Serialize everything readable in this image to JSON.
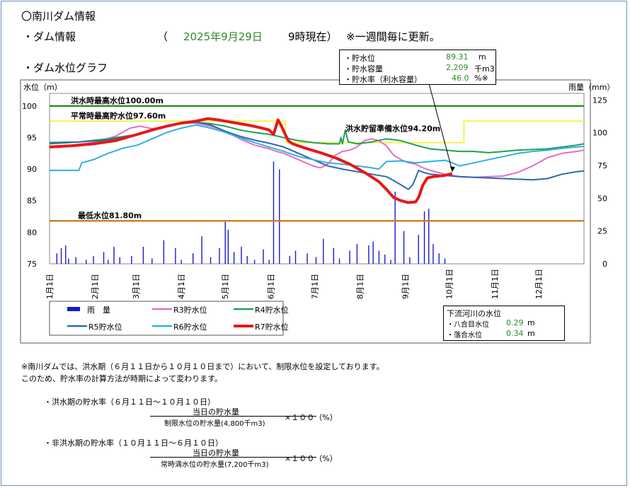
{
  "header": {
    "title": "〇南川ダム情報",
    "info_label": "・ダム情報",
    "paren_open": "（",
    "date": "2025年9月29日",
    "time": "9時現在）",
    "update_note": "※一週間毎に更新。",
    "graph_label": "・ダム水位グラフ"
  },
  "status_box": {
    "rows": [
      {
        "label": "・貯水位",
        "value": "89.31",
        "unit": "m"
      },
      {
        "label": "・貯水容量",
        "value": "2,209",
        "unit": "千m3"
      },
      {
        "label": "・貯水率（利水容量）",
        "value": "46.0",
        "unit": "%※"
      }
    ]
  },
  "river_box": {
    "title": "下流河川の水位",
    "rows": [
      {
        "label": "・八合目水位",
        "value": "0.29",
        "unit": "m"
      },
      {
        "label": "・落合水位",
        "value": "0.34",
        "unit": "m"
      }
    ]
  },
  "chart_data": {
    "type": "line",
    "ylabel": "水位（m）",
    "y2label": "雨量（mm）",
    "ylim": [
      75,
      102
    ],
    "y2lim": [
      0,
      130
    ],
    "y_ticks": [
      75,
      80,
      85,
      90,
      95,
      100
    ],
    "y2_ticks": [
      0,
      25,
      50,
      75,
      100,
      125
    ],
    "x_unit": "day_of_year",
    "xlim": [
      0,
      365
    ],
    "x_tick_labels": [
      "1月1日",
      "2月1日",
      "3月1日",
      "4月1日",
      "5月1日",
      "6月1日",
      "7月1日",
      "8月1日",
      "9月1日",
      "10月1日",
      "11月1日",
      "12月1日"
    ],
    "x_tick_days": [
      0,
      31,
      59,
      90,
      120,
      151,
      181,
      212,
      243,
      273,
      304,
      334
    ],
    "reference_lines": [
      {
        "label": "洪水時最高水位100.00m",
        "value": 100.0,
        "color": "#2a8f2a"
      },
      {
        "label": "平常時最高貯水位97.60m",
        "value": 97.6,
        "color": "#000000"
      },
      {
        "label": "洪水貯留準備水位94.20m",
        "value": 94.2,
        "color": "#000000"
      },
      {
        "label": "最低水位81.80m",
        "value": 81.8,
        "color": "#d07f2a"
      }
    ],
    "limit_series": {
      "name": "制限水位",
      "color": "#f5f050",
      "points": [
        [
          0,
          97.6
        ],
        [
          161,
          97.6
        ],
        [
          161,
          94.2
        ],
        [
          283,
          94.2
        ],
        [
          283,
          97.6
        ],
        [
          365,
          97.6
        ]
      ]
    },
    "series": [
      {
        "name": "R3貯水位",
        "color": "#e070c8",
        "width": 2,
        "points": [
          [
            0,
            93.6
          ],
          [
            15,
            93.8
          ],
          [
            30,
            94.2
          ],
          [
            45,
            95.2
          ],
          [
            55,
            96.5
          ],
          [
            62,
            96.8
          ],
          [
            70,
            96.4
          ],
          [
            80,
            96.8
          ],
          [
            90,
            97.3
          ],
          [
            100,
            97.3
          ],
          [
            110,
            96.8
          ],
          [
            120,
            96.0
          ],
          [
            130,
            94.8
          ],
          [
            140,
            93.8
          ],
          [
            150,
            93.2
          ],
          [
            155,
            92.8
          ],
          [
            160,
            92.5
          ],
          [
            165,
            92.0
          ],
          [
            170,
            91.5
          ],
          [
            175,
            91.0
          ],
          [
            180,
            90.5
          ],
          [
            185,
            90.2
          ],
          [
            190,
            90.8
          ],
          [
            195,
            92.2
          ],
          [
            200,
            92.8
          ],
          [
            205,
            93.0
          ],
          [
            210,
            93.5
          ],
          [
            215,
            94.5
          ],
          [
            220,
            94.8
          ],
          [
            225,
            94.5
          ],
          [
            230,
            93.7
          ],
          [
            235,
            92.2
          ],
          [
            240,
            91.5
          ],
          [
            245,
            91.0
          ],
          [
            250,
            90.8
          ],
          [
            255,
            90.2
          ],
          [
            260,
            89.8
          ],
          [
            265,
            89.5
          ],
          [
            270,
            89.2
          ],
          [
            275,
            89.0
          ],
          [
            280,
            88.8
          ],
          [
            290,
            88.7
          ],
          [
            300,
            88.8
          ],
          [
            310,
            88.9
          ],
          [
            320,
            89.5
          ],
          [
            330,
            90.5
          ],
          [
            340,
            91.8
          ],
          [
            350,
            92.5
          ],
          [
            360,
            92.8
          ],
          [
            365,
            93.0
          ]
        ]
      },
      {
        "name": "R4貯水位",
        "color": "#1fa05a",
        "width": 2,
        "points": [
          [
            0,
            94.0
          ],
          [
            20,
            94.3
          ],
          [
            40,
            94.8
          ],
          [
            60,
            95.5
          ],
          [
            75,
            96.5
          ],
          [
            90,
            97.3
          ],
          [
            100,
            97.4
          ],
          [
            110,
            97.2
          ],
          [
            120,
            96.8
          ],
          [
            130,
            96.2
          ],
          [
            140,
            95.8
          ],
          [
            150,
            95.5
          ],
          [
            160,
            95.0
          ],
          [
            170,
            94.5
          ],
          [
            180,
            94.2
          ],
          [
            190,
            94.0
          ],
          [
            198,
            94.0
          ],
          [
            199,
            95.0
          ],
          [
            200,
            94.0
          ],
          [
            202,
            96.2
          ],
          [
            204,
            94.3
          ],
          [
            210,
            94.0
          ],
          [
            220,
            94.3
          ],
          [
            230,
            94.8
          ],
          [
            240,
            94.5
          ],
          [
            250,
            93.8
          ],
          [
            260,
            93.2
          ],
          [
            270,
            93.0
          ],
          [
            280,
            92.8
          ],
          [
            290,
            92.8
          ],
          [
            300,
            92.6
          ],
          [
            310,
            92.8
          ],
          [
            320,
            93.0
          ],
          [
            330,
            93.1
          ],
          [
            340,
            93.2
          ],
          [
            350,
            93.5
          ],
          [
            360,
            93.8
          ],
          [
            365,
            94.0
          ]
        ]
      },
      {
        "name": "R5貯水位",
        "color": "#2c6aa8",
        "width": 2,
        "points": [
          [
            0,
            94.2
          ],
          [
            20,
            94.3
          ],
          [
            40,
            94.6
          ],
          [
            55,
            95.2
          ],
          [
            70,
            96.2
          ],
          [
            85,
            97.0
          ],
          [
            100,
            97.5
          ],
          [
            110,
            97.0
          ],
          [
            120,
            96.0
          ],
          [
            130,
            95.2
          ],
          [
            140,
            94.6
          ],
          [
            150,
            94.1
          ],
          [
            160,
            93.5
          ],
          [
            165,
            93.0
          ],
          [
            170,
            92.5
          ],
          [
            175,
            92.0
          ],
          [
            180,
            91.5
          ],
          [
            185,
            91.0
          ],
          [
            190,
            90.5
          ],
          [
            200,
            90.0
          ],
          [
            210,
            89.6
          ],
          [
            220,
            89.2
          ],
          [
            230,
            88.8
          ],
          [
            235,
            88.2
          ],
          [
            240,
            87.5
          ],
          [
            245,
            86.8
          ],
          [
            248,
            87.5
          ],
          [
            250,
            88.6
          ],
          [
            252,
            89.8
          ],
          [
            255,
            89.5
          ],
          [
            260,
            89.2
          ],
          [
            270,
            89.0
          ],
          [
            280,
            88.8
          ],
          [
            290,
            88.7
          ],
          [
            300,
            88.6
          ],
          [
            310,
            88.5
          ],
          [
            320,
            88.4
          ],
          [
            330,
            88.3
          ],
          [
            340,
            88.5
          ],
          [
            350,
            89.2
          ],
          [
            360,
            89.6
          ],
          [
            365,
            89.7
          ]
        ]
      },
      {
        "name": "R6貯水位",
        "color": "#30b0e0",
        "width": 2,
        "points": [
          [
            0,
            89.8
          ],
          [
            15,
            89.8
          ],
          [
            20,
            89.8
          ],
          [
            22,
            91.0
          ],
          [
            30,
            91.5
          ],
          [
            40,
            92.5
          ],
          [
            50,
            93.3
          ],
          [
            60,
            93.8
          ],
          [
            70,
            94.8
          ],
          [
            80,
            95.8
          ],
          [
            90,
            96.5
          ],
          [
            100,
            97.0
          ],
          [
            110,
            96.5
          ],
          [
            120,
            95.8
          ],
          [
            130,
            95.0
          ],
          [
            140,
            94.2
          ],
          [
            150,
            93.5
          ],
          [
            160,
            92.8
          ],
          [
            170,
            92.0
          ],
          [
            180,
            91.5
          ],
          [
            190,
            91.0
          ],
          [
            200,
            90.8
          ],
          [
            210,
            90.5
          ],
          [
            220,
            90.2
          ],
          [
            225,
            90.0
          ],
          [
            230,
            91.2
          ],
          [
            240,
            91.3
          ],
          [
            250,
            91.0
          ],
          [
            260,
            91.2
          ],
          [
            270,
            91.4
          ],
          [
            275,
            91.0
          ],
          [
            280,
            90.5
          ],
          [
            290,
            91.0
          ],
          [
            300,
            91.5
          ],
          [
            310,
            92.0
          ],
          [
            320,
            92.5
          ],
          [
            330,
            92.8
          ],
          [
            340,
            93.0
          ],
          [
            350,
            93.3
          ],
          [
            360,
            93.5
          ],
          [
            365,
            93.6
          ]
        ]
      },
      {
        "name": "R7貯水位",
        "color": "#e81818",
        "width": 4,
        "points": [
          [
            0,
            93.5
          ],
          [
            15,
            93.7
          ],
          [
            30,
            94.0
          ],
          [
            45,
            94.5
          ],
          [
            60,
            95.5
          ],
          [
            70,
            96.2
          ],
          [
            80,
            96.8
          ],
          [
            90,
            97.3
          ],
          [
            100,
            97.6
          ],
          [
            108,
            98.0
          ],
          [
            115,
            97.8
          ],
          [
            125,
            97.4
          ],
          [
            135,
            97.0
          ],
          [
            145,
            96.5
          ],
          [
            150,
            96.2
          ],
          [
            153,
            95.5
          ],
          [
            156,
            97.8
          ],
          [
            158,
            97.0
          ],
          [
            160,
            96.0
          ],
          [
            163,
            94.5
          ],
          [
            166,
            94.0
          ],
          [
            175,
            93.3
          ],
          [
            185,
            92.6
          ],
          [
            195,
            91.8
          ],
          [
            205,
            90.8
          ],
          [
            215,
            89.5
          ],
          [
            225,
            88.0
          ],
          [
            230,
            86.8
          ],
          [
            235,
            85.5
          ],
          [
            240,
            85.0
          ],
          [
            245,
            84.7
          ],
          [
            250,
            84.8
          ],
          [
            252,
            85.5
          ],
          [
            255,
            87.5
          ],
          [
            258,
            88.6
          ],
          [
            262,
            88.8
          ],
          [
            270,
            89.0
          ],
          [
            275,
            89.31
          ]
        ]
      }
    ],
    "rain_series": {
      "name": "雨量",
      "color": "#1818d0",
      "points": [
        [
          5,
          8
        ],
        [
          8,
          12
        ],
        [
          11,
          14
        ],
        [
          13,
          4
        ],
        [
          18,
          5
        ],
        [
          25,
          3
        ],
        [
          30,
          6
        ],
        [
          37,
          9
        ],
        [
          40,
          3
        ],
        [
          44,
          13
        ],
        [
          48,
          5
        ],
        [
          56,
          6
        ],
        [
          64,
          13
        ],
        [
          70,
          4
        ],
        [
          78,
          18
        ],
        [
          86,
          12
        ],
        [
          90,
          3
        ],
        [
          98,
          8
        ],
        [
          104,
          21
        ],
        [
          110,
          5
        ],
        [
          116,
          12
        ],
        [
          120,
          32
        ],
        [
          122,
          26
        ],
        [
          126,
          9
        ],
        [
          131,
          13
        ],
        [
          135,
          6
        ],
        [
          140,
          3
        ],
        [
          146,
          11
        ],
        [
          150,
          3
        ],
        [
          153,
          78
        ],
        [
          157,
          72
        ],
        [
          164,
          6
        ],
        [
          168,
          10
        ],
        [
          176,
          8
        ],
        [
          182,
          5
        ],
        [
          187,
          19
        ],
        [
          194,
          12
        ],
        [
          198,
          4
        ],
        [
          205,
          10
        ],
        [
          210,
          15
        ],
        [
          218,
          14
        ],
        [
          221,
          17
        ],
        [
          225,
          10
        ],
        [
          229,
          7
        ],
        [
          233,
          3
        ],
        [
          236,
          55
        ],
        [
          242,
          25
        ],
        [
          246,
          5
        ],
        [
          252,
          22
        ],
        [
          256,
          40
        ],
        [
          259,
          42
        ],
        [
          262,
          15
        ],
        [
          266,
          8
        ],
        [
          270,
          4
        ]
      ]
    },
    "legend": [
      {
        "name": "雨　量",
        "color": "#1818d0",
        "type": "bar"
      },
      {
        "name": "R3貯水位",
        "color": "#e070c8",
        "type": "line"
      },
      {
        "name": "R4貯水位",
        "color": "#1fa05a",
        "type": "line"
      },
      {
        "name": "R5貯水位",
        "color": "#2c6aa8",
        "type": "line"
      },
      {
        "name": "R6貯水位",
        "color": "#30b0e0",
        "type": "line"
      },
      {
        "name": "R7貯水位",
        "color": "#e81818",
        "type": "line"
      }
    ]
  },
  "notes": {
    "main": "※南川ダムでは、洪水期（６月１１日から１０月１０日まで）において、制限水位を設定しております。\nこのため、貯水率の計算方法が時期によって変わります。",
    "formula1_label": "・洪水期の貯水率（６月１１日～１０月１０日）",
    "formula1_numerator": "当日の貯水量",
    "formula1_denominator": "制限水位の貯水量(4,800千m3)",
    "formula1_multiplier": "×１００（%）",
    "formula2_label": "・非洪水期の貯水率（１０月１１日～６月１０日）",
    "formula2_numerator": "当日の貯水量",
    "formula2_denominator": "常時満水位の貯水量(7,200千m3)",
    "formula2_multiplier": "×１００（%）"
  }
}
